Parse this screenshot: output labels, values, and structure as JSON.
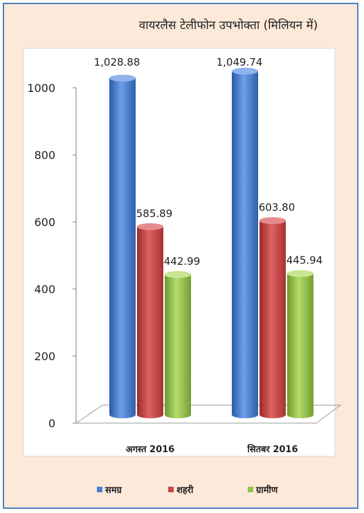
{
  "chart_data": {
    "type": "bar",
    "title": "वायरलैस टेलीफोन उपभोक्ता (मिलियन में)",
    "categories": [
      "अगस्त 2016",
      "सितबर 2016"
    ],
    "series": [
      {
        "name": "समग्र",
        "values": [
          1028.88,
          1049.74
        ],
        "labels": [
          "1,028.88",
          "1,049.74"
        ],
        "color": "#4a7fd0"
      },
      {
        "name": "शहरी",
        "values": [
          585.89,
          603.8
        ],
        "labels": [
          "585.89",
          "603.80"
        ],
        "color": "#c84545"
      },
      {
        "name": "ग्रामीण",
        "values": [
          442.99,
          445.94
        ],
        "labels": [
          "442.99",
          "445.94"
        ],
        "color": "#93c14a"
      }
    ],
    "yticks": [
      "0",
      "200",
      "400",
      "600",
      "800",
      "1000"
    ],
    "ylim": [
      0,
      1000
    ],
    "grid": false,
    "legend_position": "bottom",
    "background": "#fde9d9",
    "plot_background": "#ffffff",
    "border_color": "#4f81bd"
  }
}
